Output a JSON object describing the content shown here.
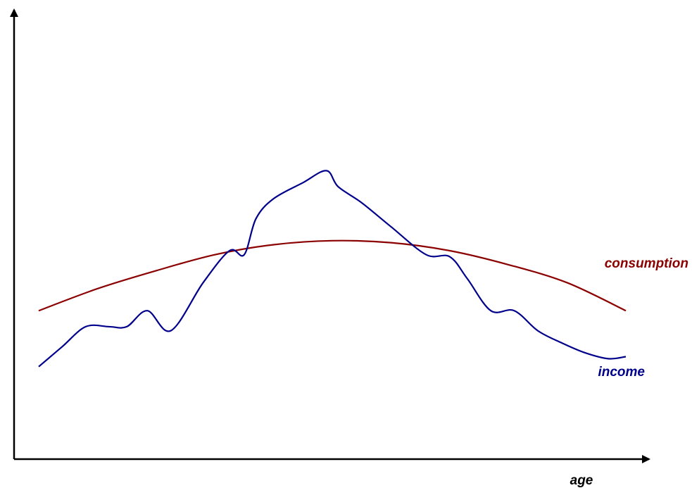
{
  "chart_data": {
    "type": "line",
    "title": "",
    "xlabel": "age",
    "ylabel": "",
    "grid": false,
    "legend": "inline labels at right end of each series",
    "xlim": [
      0,
      100
    ],
    "ylim": [
      0,
      100
    ],
    "series": [
      {
        "name": "consumption",
        "color": "#8b0000",
        "x": [
          0,
          10,
          20,
          30,
          40,
          50,
          60,
          70,
          80,
          90,
          100
        ],
        "y": [
          35,
          40.5,
          45,
          49,
          51.5,
          52.5,
          52,
          50,
          46.5,
          42,
          35
        ]
      },
      {
        "name": "income",
        "color": "#00008b",
        "x": [
          0,
          4,
          8,
          12,
          15,
          18.5,
          22.5,
          28,
          32.5,
          35,
          37,
          40,
          45,
          49,
          51,
          55,
          60,
          66,
          70,
          73,
          77,
          81,
          85,
          89,
          93,
          97,
          100
        ],
        "y": [
          21,
          26,
          31,
          31,
          31,
          35,
          30,
          42,
          50,
          49,
          58,
          63,
          67,
          70,
          66,
          62,
          56,
          49,
          48.5,
          43,
          35,
          35,
          30,
          27,
          24.5,
          23,
          23.5
        ]
      }
    ]
  }
}
